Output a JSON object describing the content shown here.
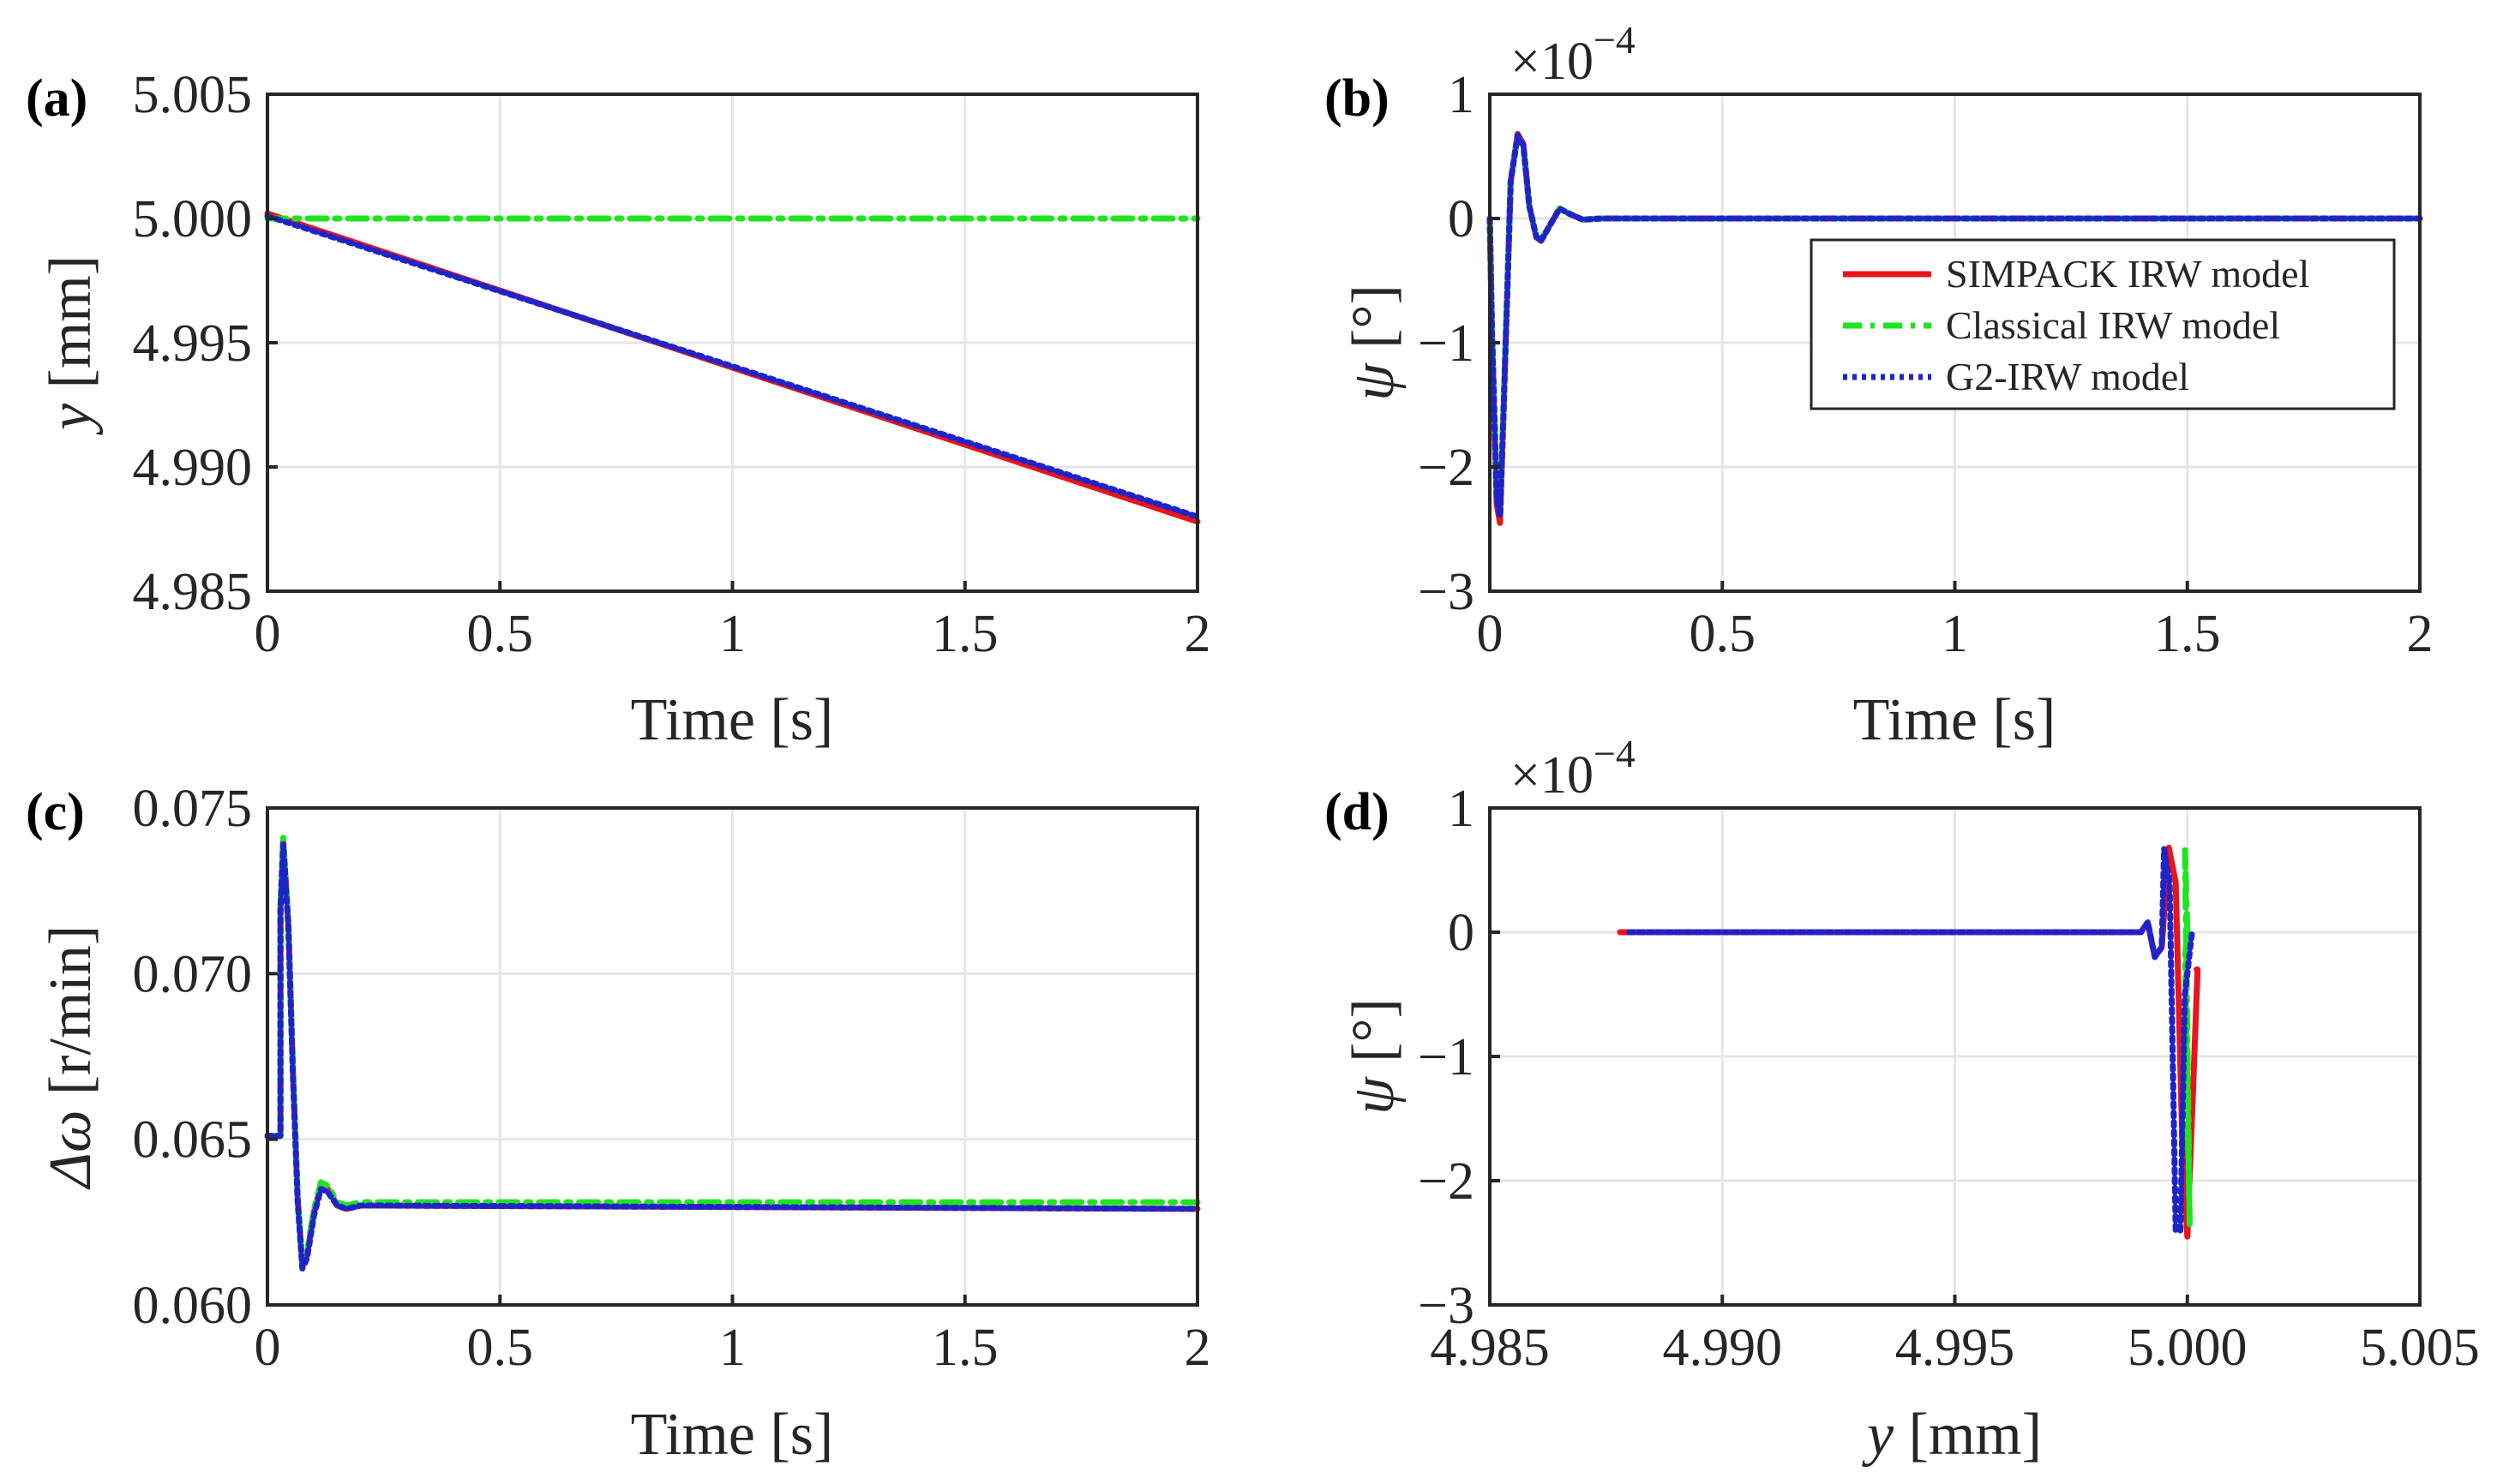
{
  "figure": {
    "legend": [
      {
        "label": "SIMPACK IRW model",
        "color": "#e8151b",
        "dash": "solid"
      },
      {
        "label": "Classical IRW model",
        "color": "#1ee51e",
        "dash": "dashdot"
      },
      {
        "label": "G2-IRW model",
        "color": "#1d24c9",
        "dash": "dotted"
      }
    ]
  },
  "chart_data": [
    {
      "panel": "(a)",
      "type": "line",
      "xlabel": "Time [s]",
      "ylabel_var": "y",
      "ylabel_unit": " [mm]",
      "xlim": [
        0,
        2
      ],
      "ylim": [
        4.985,
        5.005
      ],
      "xticks": [
        0,
        0.5,
        1,
        1.5,
        2
      ],
      "xtick_labels": [
        "0",
        "0.5",
        "1",
        "1.5",
        "2"
      ],
      "yticks": [
        4.985,
        4.99,
        4.995,
        5.0,
        5.005
      ],
      "ytick_labels": [
        "4.985",
        "4.990",
        "4.995",
        "5.000",
        "5.005"
      ],
      "grid": true,
      "series": [
        {
          "name": "SIMPACK IRW model",
          "x": [
            0,
            2
          ],
          "y": [
            5.0002,
            4.9878
          ]
        },
        {
          "name": "Classical IRW model",
          "x": [
            0,
            2
          ],
          "y": [
            5.0,
            5.0
          ]
        },
        {
          "name": "G2-IRW model",
          "x": [
            0,
            2
          ],
          "y": [
            5.0001,
            4.988
          ]
        }
      ]
    },
    {
      "panel": "(b)",
      "type": "line",
      "xlabel": "Time [s]",
      "ylabel_var": "ψ",
      "ylabel_unit": " [°]",
      "exponent_label": "×10",
      "exponent_power": "−4",
      "xlim": [
        0,
        2
      ],
      "ylim": [
        -3,
        1
      ],
      "xticks": [
        0,
        0.5,
        1,
        1.5,
        2
      ],
      "xtick_labels": [
        "0",
        "0.5",
        "1",
        "1.5",
        "2"
      ],
      "yticks": [
        -3,
        -2,
        -1,
        0,
        1
      ],
      "ytick_labels": [
        "−3",
        "−2",
        "−1",
        "0",
        "1"
      ],
      "grid": true,
      "legend_position": "upper-right",
      "series": [
        {
          "name": "SIMPACK IRW model",
          "x": [
            0,
            0.005,
            0.015,
            0.022,
            0.03,
            0.045,
            0.06,
            0.072,
            0.085,
            0.1,
            0.11,
            0.13,
            0.15,
            0.17,
            0.2,
            0.24,
            2.0
          ],
          "y": [
            0,
            -1.0,
            -2.3,
            -2.45,
            -1.5,
            0.3,
            0.68,
            0.6,
            0.1,
            -0.15,
            -0.18,
            -0.05,
            0.08,
            0.04,
            -0.01,
            0,
            0
          ]
        },
        {
          "name": "Classical IRW model",
          "x": [
            0,
            0.005,
            0.015,
            0.022,
            0.03,
            0.045,
            0.06,
            0.072,
            0.085,
            0.1,
            0.11,
            0.13,
            0.15,
            0.17,
            0.2,
            0.24,
            2.0
          ],
          "y": [
            0,
            -0.9,
            -2.2,
            -2.35,
            -1.45,
            0.3,
            0.66,
            0.58,
            0.1,
            -0.14,
            -0.17,
            -0.05,
            0.08,
            0.04,
            -0.01,
            0,
            0
          ]
        },
        {
          "name": "G2-IRW model",
          "x": [
            0,
            0.005,
            0.015,
            0.022,
            0.03,
            0.045,
            0.06,
            0.072,
            0.085,
            0.1,
            0.11,
            0.13,
            0.15,
            0.17,
            0.2,
            0.24,
            2.0
          ],
          "y": [
            0,
            -0.95,
            -2.25,
            -2.4,
            -1.5,
            0.3,
            0.67,
            0.59,
            0.1,
            -0.15,
            -0.18,
            -0.05,
            0.08,
            0.04,
            -0.01,
            0,
            0
          ]
        }
      ]
    },
    {
      "panel": "(c)",
      "type": "line",
      "xlabel": "Time [s]",
      "ylabel_var": "Δω",
      "ylabel_unit": " [r/min]",
      "xlim": [
        0,
        2
      ],
      "ylim": [
        0.06,
        0.075
      ],
      "xticks": [
        0,
        0.5,
        1,
        1.5,
        2
      ],
      "xtick_labels": [
        "0",
        "0.5",
        "1",
        "1.5",
        "2"
      ],
      "yticks": [
        0.06,
        0.065,
        0.07,
        0.075
      ],
      "ytick_labels": [
        "0.060",
        "0.065",
        "0.070",
        "0.075"
      ],
      "grid": true,
      "series": [
        {
          "name": "SIMPACK IRW model",
          "x": [
            0,
            0.028,
            0.028,
            0.034,
            0.045,
            0.055,
            0.065,
            0.075,
            0.085,
            0.1,
            0.115,
            0.13,
            0.15,
            0.17,
            0.2,
            0.25,
            2.0
          ],
          "y": [
            0.0651,
            0.0651,
            0.072,
            0.074,
            0.0715,
            0.067,
            0.0632,
            0.0612,
            0.0615,
            0.0628,
            0.0636,
            0.0635,
            0.063,
            0.0629,
            0.063,
            0.063,
            0.0629
          ]
        },
        {
          "name": "Classical IRW model",
          "x": [
            0,
            0.028,
            0.028,
            0.034,
            0.045,
            0.055,
            0.065,
            0.075,
            0.085,
            0.1,
            0.115,
            0.13,
            0.15,
            0.17,
            0.2,
            0.25,
            2.0
          ],
          "y": [
            0.0651,
            0.0651,
            0.072,
            0.0741,
            0.0716,
            0.0671,
            0.0633,
            0.0613,
            0.0616,
            0.0629,
            0.0637,
            0.0636,
            0.0631,
            0.063,
            0.0631,
            0.0631,
            0.0631
          ]
        },
        {
          "name": "G2-IRW model",
          "x": [
            0,
            0.028,
            0.028,
            0.034,
            0.045,
            0.055,
            0.065,
            0.075,
            0.085,
            0.1,
            0.115,
            0.13,
            0.15,
            0.17,
            0.2,
            0.25,
            2.0
          ],
          "y": [
            0.0651,
            0.0651,
            0.0719,
            0.0739,
            0.0714,
            0.0669,
            0.0631,
            0.0611,
            0.0614,
            0.0627,
            0.0635,
            0.0634,
            0.063,
            0.0629,
            0.063,
            0.063,
            0.0629
          ]
        }
      ]
    },
    {
      "panel": "(d)",
      "type": "line",
      "xlabel_var": "y",
      "xlabel_unit": " [mm]",
      "ylabel_var": "ψ",
      "ylabel_unit": " [°]",
      "exponent_label": "×10",
      "exponent_power": "−4",
      "xlim": [
        4.985,
        5.005
      ],
      "ylim": [
        -3,
        1
      ],
      "xticks": [
        4.985,
        4.99,
        4.995,
        5.0,
        5.005
      ],
      "xtick_labels": [
        "4.985",
        "4.990",
        "4.995",
        "5.000",
        "5.005"
      ],
      "yticks": [
        -3,
        -2,
        -1,
        0,
        1
      ],
      "ytick_labels": [
        "−3",
        "−2",
        "−1",
        "0",
        "1"
      ],
      "grid": true,
      "series": [
        {
          "name": "SIMPACK IRW model",
          "x": [
            4.9878,
            4.999,
            4.99915,
            4.9993,
            4.99945,
            4.9996,
            4.99975,
            4.9999,
            5.0,
            5.00015,
            5.00022,
            5.0002
          ],
          "y": [
            0,
            0,
            0.08,
            -0.2,
            -0.12,
            0.68,
            0.4,
            -1.8,
            -2.45,
            -1.0,
            -0.3,
            -0.3
          ]
        },
        {
          "name": "Classical IRW model",
          "x": [
            5.0,
            4.99995,
            5.00005,
            4.99995,
            5.0
          ],
          "y": [
            0,
            0.66,
            -2.35,
            -0.2,
            0
          ]
        },
        {
          "name": "G2-IRW model",
          "x": [
            4.988,
            4.999,
            4.99915,
            4.9993,
            4.99945,
            4.9995,
            4.99962,
            4.99975,
            4.99985,
            4.99995,
            5.0001
          ],
          "y": [
            0,
            0,
            0.08,
            -0.2,
            -0.12,
            0.67,
            0.4,
            -2.4,
            -2.4,
            -0.5,
            0
          ]
        }
      ]
    }
  ]
}
